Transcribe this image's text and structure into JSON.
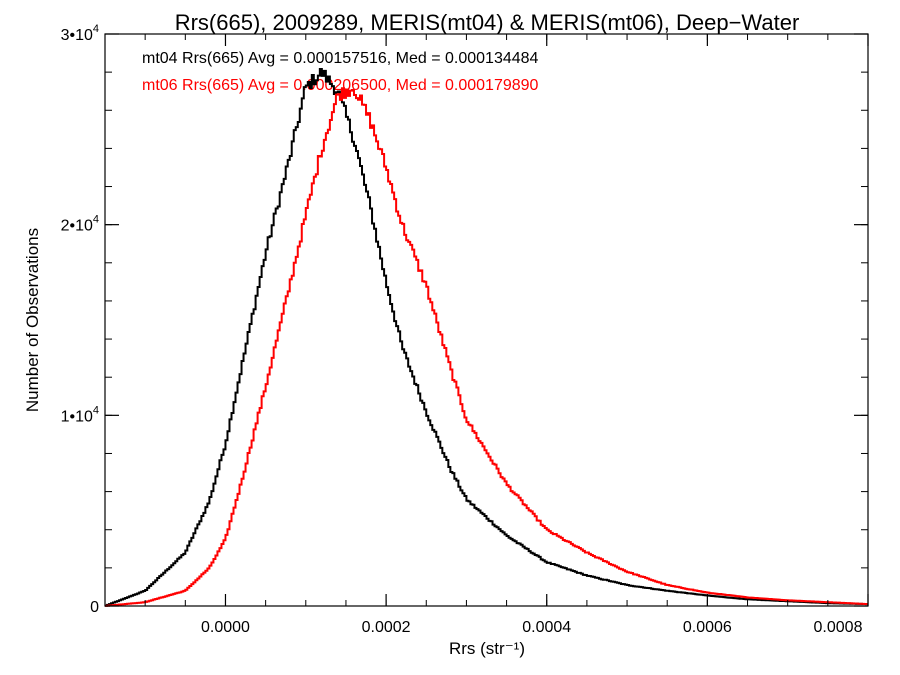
{
  "chart_data": {
    "type": "line",
    "style": "step-histogram",
    "title": "Rrs(665), 2009289, MERIS(mt04) & MERIS(mt06), Deep−Water",
    "xlabel": "Rrs (str⁻¹)",
    "ylabel": "Number of Observations",
    "xlim": [
      -0.00015,
      0.0008
    ],
    "ylim": [
      0,
      30000
    ],
    "grid": false,
    "x_ticks": [
      {
        "value": 0.0,
        "label": "0.0000"
      },
      {
        "value": 0.0002,
        "label": "0.0002"
      },
      {
        "value": 0.0004,
        "label": "0.0004"
      },
      {
        "value": 0.0006,
        "label": "0.0006"
      },
      {
        "value": 0.0008,
        "label": "0.0008"
      }
    ],
    "y_ticks": [
      {
        "value": 0,
        "label": "0"
      },
      {
        "value": 10000,
        "label": "1•104"
      },
      {
        "value": 20000,
        "label": "2•104"
      },
      {
        "value": 30000,
        "label": "3•104"
      }
    ],
    "annotations": [
      {
        "text": "mt04 Rrs(665) Avg = 0.000157516, Med = 0.000134484",
        "color": "#000000"
      },
      {
        "text": "mt06 Rrs(665) Avg = 0.000206500, Med = 0.000179890",
        "color": "#ff0000"
      }
    ],
    "series": [
      {
        "color": "#000000",
        "x": [
          -0.00015,
          -0.0001,
          -5e-05,
          -2e-05,
          0.0,
          2e-05,
          5e-05,
          8e-05,
          0.0001,
          0.00012,
          0.00014,
          0.00016,
          0.00018,
          0.0002,
          0.00022,
          0.00025,
          0.00028,
          0.0003,
          0.00035,
          0.0004,
          0.00045,
          0.0005,
          0.00055,
          0.0006,
          0.00065,
          0.0007,
          0.00075,
          0.0008
        ],
        "y": [
          0,
          800,
          2800,
          5500,
          8500,
          12500,
          18500,
          23500,
          27200,
          28000,
          27000,
          24500,
          21000,
          17000,
          13600,
          10200,
          7200,
          5600,
          3700,
          2300,
          1600,
          1100,
          800,
          550,
          350,
          250,
          150,
          100
        ]
      },
      {
        "color": "#ff0000",
        "x": [
          -0.00015,
          -0.0001,
          -5e-05,
          -2e-05,
          0.0,
          2e-05,
          5e-05,
          8e-05,
          0.0001,
          0.00012,
          0.00014,
          0.00016,
          0.00018,
          0.0002,
          0.00022,
          0.00025,
          0.00028,
          0.0003,
          0.00035,
          0.0004,
          0.00045,
          0.0005,
          0.00055,
          0.0006,
          0.00065,
          0.0007,
          0.00075,
          0.0008
        ],
        "y": [
          0,
          200,
          800,
          2000,
          3500,
          6500,
          11500,
          16800,
          20500,
          24000,
          26800,
          27200,
          25500,
          23000,
          20000,
          16800,
          12500,
          9800,
          6400,
          4000,
          2800,
          1800,
          1100,
          700,
          450,
          300,
          200,
          100
        ]
      }
    ]
  }
}
